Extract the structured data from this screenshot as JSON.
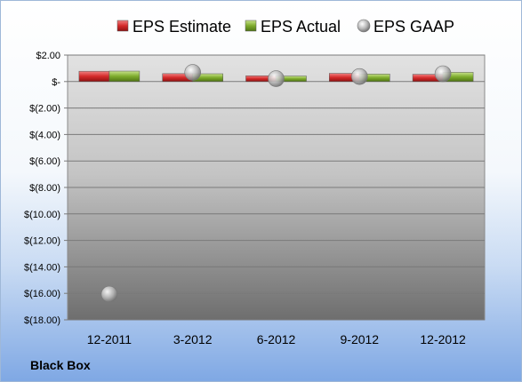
{
  "company": "Black Box",
  "colors": {
    "estimate": "#d42a2a",
    "actual": "#7dab2c",
    "gaap": "#b0b0b0"
  },
  "chart_data": {
    "type": "bar",
    "categories": [
      "12-2011",
      "3-2012",
      "6-2012",
      "9-2012",
      "12-2012"
    ],
    "series": [
      {
        "name": "EPS Estimate",
        "kind": "bar",
        "color": "#d42a2a",
        "values": [
          0.78,
          0.6,
          0.44,
          0.62,
          0.55
        ]
      },
      {
        "name": "EPS Actual",
        "kind": "bar",
        "color": "#7dab2c",
        "values": [
          0.79,
          0.59,
          0.42,
          0.57,
          0.7
        ]
      },
      {
        "name": "EPS GAAP",
        "kind": "marker",
        "color": "#b0b0b0",
        "values": [
          -16.06,
          0.69,
          0.22,
          0.38,
          0.59
        ]
      }
    ],
    "ylim": [
      -18,
      2
    ],
    "yticks": [
      2,
      0,
      -2,
      -4,
      -6,
      -8,
      -10,
      -12,
      -14,
      -16,
      -18
    ],
    "ytick_labels": [
      "$2.00",
      "$-",
      "$(2.00)",
      "$(4.00)",
      "$(6.00)",
      "$(8.00)",
      "$(10.00)",
      "$(12.00)",
      "$(14.00)",
      "$(16.00)",
      "$(18.00)"
    ],
    "legend_position": "top",
    "grid": true
  }
}
